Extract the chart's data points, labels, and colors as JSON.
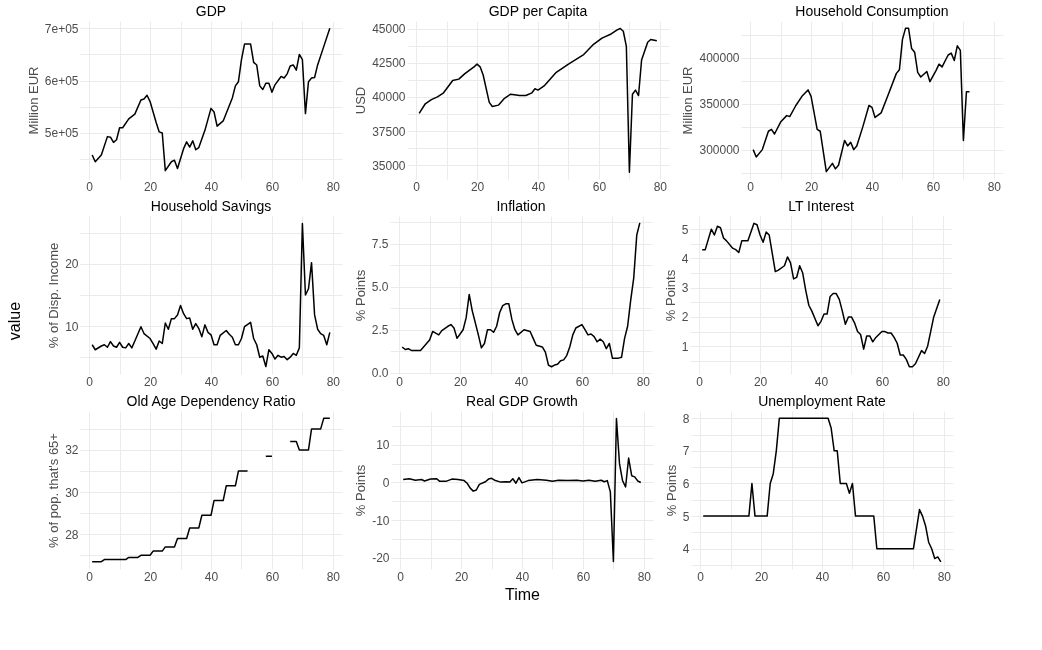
{
  "chart_data": [
    {
      "type": "line",
      "title": "GDP",
      "ylabel": "Million EUR",
      "grid": true,
      "xlim": [
        -3,
        83
      ],
      "xticks": [
        0,
        {
          "value": 10,
          "label": null
        },
        20,
        {
          "value": 30,
          "label": null
        },
        40,
        {
          "value": 50,
          "label": null
        },
        60,
        {
          "value": 70,
          "label": null
        },
        80
      ],
      "ylim": [
        412000,
        714000
      ],
      "yticks": [
        {
          "value": 450000,
          "label": null
        },
        {
          "value": 500000,
          "label": "5e+05"
        },
        {
          "value": 550000,
          "label": null
        },
        {
          "value": 600000,
          "label": "6e+05"
        },
        {
          "value": 650000,
          "label": null
        },
        {
          "value": 700000,
          "label": "7e+05"
        }
      ],
      "series": [
        {
          "color": "#000000",
          "x": [
            1,
            2,
            4,
            6,
            7,
            8,
            9,
            10,
            11,
            13,
            15,
            17,
            18,
            19,
            20,
            22,
            23,
            24,
            25,
            27,
            28,
            29,
            31,
            32,
            33,
            34,
            35,
            36,
            38,
            40,
            41,
            42,
            44,
            47,
            48,
            49,
            50,
            51,
            53,
            54,
            55,
            56,
            57,
            58,
            59,
            60,
            61,
            63,
            64,
            65,
            66,
            67,
            68,
            69,
            70,
            71,
            72,
            73,
            74,
            75,
            77,
            79
          ],
          "values": [
            458000,
            445000,
            458000,
            493000,
            492000,
            482000,
            487000,
            510000,
            510000,
            527000,
            536000,
            563000,
            565000,
            572000,
            560000,
            520000,
            502000,
            500000,
            428000,
            445000,
            448000,
            432000,
            470000,
            483000,
            473000,
            485000,
            468000,
            472000,
            505000,
            547000,
            540000,
            513000,
            523000,
            567000,
            590000,
            598000,
            640000,
            670000,
            670000,
            635000,
            630000,
            590000,
            583000,
            595000,
            595000,
            578000,
            592000,
            608000,
            605000,
            613000,
            628000,
            630000,
            620000,
            650000,
            640000,
            537000,
            598000,
            605000,
            606000,
            630000,
            665000,
            700000
          ]
        }
      ]
    },
    {
      "type": "line",
      "title": "GDP per Capita",
      "ylabel": "USD",
      "grid": true,
      "xlim": [
        -3,
        83
      ],
      "xticks": [
        0,
        {
          "value": 10,
          "label": null
        },
        20,
        {
          "value": 30,
          "label": null
        },
        40,
        {
          "value": 50,
          "label": null
        },
        60,
        {
          "value": 70,
          "label": null
        },
        80
      ],
      "ylim": [
        34000,
        45550
      ],
      "yticks": [
        35000,
        {
          "value": 36250,
          "label": null
        },
        37500,
        {
          "value": 38750,
          "label": null
        },
        40000,
        {
          "value": 41250,
          "label": null
        },
        42500,
        {
          "value": 43750,
          "label": null
        },
        45000
      ],
      "series": [
        {
          "color": "#000000",
          "x": [
            1,
            3,
            5,
            7,
            9,
            12,
            14,
            16,
            19,
            20,
            21,
            22,
            24,
            25,
            27,
            29,
            31,
            34,
            36,
            38,
            39,
            40,
            42,
            46,
            50,
            55,
            58,
            61,
            64,
            66,
            67,
            68,
            69,
            70,
            71,
            72,
            73,
            74,
            76,
            77,
            79
          ],
          "values": [
            38800,
            39500,
            39800,
            40000,
            40300,
            41200,
            41300,
            41700,
            42200,
            42400,
            42200,
            41600,
            39600,
            39300,
            39400,
            39900,
            40200,
            40100,
            40100,
            40300,
            40600,
            40500,
            40800,
            41800,
            42400,
            43100,
            43800,
            44300,
            44600,
            44900,
            45000,
            44800,
            43700,
            34500,
            40200,
            40500,
            40100,
            42700,
            44000,
            44200,
            44100
          ]
        }
      ]
    },
    {
      "type": "line",
      "title": "Household Consumption",
      "ylabel": "Million EUR",
      "grid": true,
      "xlim": [
        -3,
        83
      ],
      "xticks": [
        0,
        {
          "value": 10,
          "label": null
        },
        20,
        {
          "value": 30,
          "label": null
        },
        40,
        {
          "value": 50,
          "label": null
        },
        60,
        {
          "value": 70,
          "label": null
        },
        80
      ],
      "ylim": [
        268000,
        440000
      ],
      "yticks": [
        {
          "value": 275000,
          "label": null
        },
        300000,
        {
          "value": 325000,
          "label": null
        },
        350000,
        {
          "value": 375000,
          "label": null
        },
        400000,
        {
          "value": 425000,
          "label": null
        }
      ],
      "series": [
        {
          "color": "#000000",
          "x": [
            1,
            2,
            4,
            6,
            7,
            8,
            10,
            12,
            13,
            15,
            17,
            19,
            20,
            22,
            23,
            25,
            27,
            28,
            29,
            31,
            32,
            33,
            34,
            35,
            37,
            39,
            40,
            41,
            43,
            45,
            48,
            49,
            50,
            51,
            52,
            53,
            54,
            55,
            56,
            58,
            59,
            61,
            62,
            63,
            65,
            66,
            67,
            68,
            69,
            70,
            71,
            72
          ],
          "values": [
            300000,
            292000,
            300000,
            320000,
            322000,
            317000,
            330000,
            337000,
            336000,
            348000,
            358000,
            365000,
            358000,
            322000,
            320000,
            276000,
            285000,
            279000,
            283000,
            310000,
            304000,
            308000,
            300000,
            304000,
            325000,
            348000,
            346000,
            335000,
            340000,
            357000,
            383000,
            387000,
            420000,
            432000,
            432000,
            410000,
            406000,
            384000,
            379000,
            385000,
            374000,
            386000,
            393000,
            390000,
            403000,
            405000,
            397000,
            413000,
            408000,
            310000,
            363000,
            363000
          ]
        }
      ]
    },
    {
      "type": "line",
      "title": "Household Savings",
      "ylabel": "% of Disp. Income",
      "annotations": [
        "value"
      ],
      "grid": true,
      "xlim": [
        -3,
        83
      ],
      "xticks": [
        0,
        {
          "value": 10,
          "label": null
        },
        20,
        {
          "value": 30,
          "label": null
        },
        40,
        {
          "value": 50,
          "label": null
        },
        60,
        {
          "value": 70,
          "label": null
        },
        80
      ],
      "ylim": [
        2.3,
        27.7
      ],
      "yticks": [
        {
          "value": 5,
          "label": null
        },
        10,
        {
          "value": 15,
          "label": null
        },
        20,
        {
          "value": 25,
          "label": null
        }
      ],
      "series": [
        {
          "color": "#000000",
          "x": [
            1,
            2,
            4,
            5,
            6,
            7,
            8,
            9,
            10,
            11,
            12,
            13,
            14,
            15,
            17,
            18,
            20,
            21,
            22,
            23,
            24,
            25,
            26,
            27,
            28,
            29,
            30,
            31,
            32,
            33,
            34,
            35,
            36,
            37,
            38,
            39,
            40,
            41,
            42,
            43,
            45,
            46,
            47,
            48,
            49,
            50,
            51,
            53,
            54,
            55,
            56,
            57,
            58,
            59,
            60,
            61,
            62,
            63,
            64,
            65,
            66,
            67,
            68,
            69,
            70,
            71,
            72,
            73,
            74,
            75,
            76,
            77,
            78,
            79
          ],
          "values": [
            7,
            6.2,
            6.8,
            7,
            6.6,
            7.5,
            6.8,
            6.6,
            7.4,
            6.6,
            6.5,
            7.2,
            6.5,
            7.6,
            9.9,
            8.8,
            8,
            7.2,
            6.3,
            7.6,
            7.2,
            10.5,
            9.5,
            11.2,
            11.2,
            11.8,
            13.3,
            12,
            11.2,
            11.3,
            9.5,
            10.4,
            9.6,
            8.3,
            10.2,
            9,
            8.6,
            7,
            7,
            8.5,
            9.3,
            8.7,
            8.2,
            7,
            7,
            8,
            9.9,
            10.6,
            8,
            7,
            5,
            5.2,
            3.5,
            6.2,
            5.6,
            4.7,
            5.3,
            5,
            5.1,
            4.6,
            5,
            5.6,
            5.3,
            6.5,
            26.5,
            15,
            16,
            20.2,
            11.8,
            9.5,
            8.8,
            8.5,
            7,
            9
          ]
        }
      ]
    },
    {
      "type": "line",
      "title": "Inflation",
      "ylabel": "% Points",
      "grid": true,
      "xlim": [
        -3,
        83
      ],
      "xticks": [
        0,
        {
          "value": 10,
          "label": null
        },
        20,
        {
          "value": 30,
          "label": null
        },
        40,
        {
          "value": 50,
          "label": null
        },
        60,
        {
          "value": 70,
          "label": null
        },
        80
      ],
      "ylim": [
        -0.07,
        9.1
      ],
      "yticks": [
        {
          "value": 0,
          "label": "0.0"
        },
        {
          "value": 1.25,
          "label": null
        },
        2.5,
        {
          "value": 3.75,
          "label": null
        },
        {
          "value": 5,
          "label": "5.0"
        },
        {
          "value": 6.25,
          "label": null
        },
        7.5,
        {
          "value": 8.75,
          "label": null
        }
      ],
      "series": [
        {
          "color": "#000000",
          "x": [
            1,
            2,
            3,
            4,
            7,
            9,
            10,
            11,
            13,
            14,
            16,
            17,
            18,
            19,
            21,
            22,
            23,
            24,
            26,
            27,
            28,
            29,
            30,
            31,
            32,
            33,
            34,
            35,
            36,
            37,
            38,
            39,
            41,
            43,
            44,
            45,
            47,
            48,
            49,
            50,
            51,
            52,
            53,
            54,
            55,
            56,
            57,
            58,
            60,
            61,
            62,
            63,
            64,
            65,
            66,
            67,
            68,
            69,
            70,
            72,
            73,
            74,
            75,
            76,
            77,
            78,
            79
          ],
          "values": [
            1.5,
            1.35,
            1.4,
            1.3,
            1.3,
            1.7,
            1.9,
            2.4,
            2.2,
            2.45,
            2.7,
            2.8,
            2.6,
            2.0,
            2.5,
            3.2,
            4.55,
            3.6,
            2.2,
            1.45,
            1.7,
            2.5,
            2.5,
            2.35,
            2.7,
            3.5,
            3.9,
            4.0,
            4.0,
            3.1,
            2.5,
            2.2,
            2.5,
            2.4,
            2.0,
            1.6,
            1.5,
            1.2,
            0.45,
            0.35,
            0.45,
            0.5,
            0.7,
            0.75,
            1.0,
            1.5,
            2.2,
            2.6,
            2.8,
            2.5,
            2.2,
            2.25,
            2.1,
            1.8,
            1.95,
            1.8,
            1.4,
            1.7,
            0.85,
            0.85,
            0.9,
            2.0,
            2.7,
            4.2,
            5.5,
            8.0,
            8.7
          ]
        }
      ]
    },
    {
      "type": "line",
      "title": "LT Interest",
      "ylabel": "% Points",
      "grid": true,
      "xlim": [
        -3,
        83
      ],
      "xticks": [
        0,
        {
          "value": 10,
          "label": null
        },
        20,
        {
          "value": 30,
          "label": null
        },
        40,
        {
          "value": 50,
          "label": null
        },
        60,
        {
          "value": 70,
          "label": null
        },
        80
      ],
      "ylim": [
        0.05,
        5.45
      ],
      "yticks": [
        {
          "value": 0.5,
          "label": null
        },
        1,
        {
          "value": 1.5,
          "label": null
        },
        2,
        {
          "value": 2.5,
          "label": null
        },
        3,
        {
          "value": 3.5,
          "label": null
        },
        4,
        {
          "value": 4.5,
          "label": null
        },
        5
      ],
      "series": [
        {
          "color": "#000000",
          "x": [
            1,
            2,
            4,
            5,
            6,
            7,
            8,
            9,
            11,
            12,
            13,
            14,
            16,
            18,
            19,
            20,
            21,
            22,
            23,
            25,
            26,
            28,
            29,
            30,
            31,
            32,
            33,
            34,
            35,
            36,
            37,
            39,
            40,
            41,
            42,
            43,
            44,
            45,
            46,
            47,
            48,
            49,
            50,
            51,
            52,
            53,
            54,
            55,
            56,
            57,
            58,
            60,
            61,
            62,
            63,
            64,
            65,
            66,
            67,
            68,
            69,
            70,
            71,
            73,
            74,
            75,
            76,
            77,
            79
          ],
          "values": [
            4.3,
            4.3,
            5.0,
            4.8,
            5.1,
            5.05,
            4.7,
            4.6,
            4.35,
            4.3,
            4.2,
            4.6,
            4.6,
            5.2,
            5.15,
            4.8,
            4.55,
            4.9,
            4.8,
            3.55,
            3.6,
            3.75,
            4.05,
            3.85,
            3.3,
            3.35,
            3.75,
            3.5,
            2.9,
            2.4,
            2.2,
            1.7,
            1.85,
            2.1,
            2.1,
            2.7,
            2.8,
            2.8,
            2.6,
            2.2,
            1.75,
            2.0,
            2.0,
            1.8,
            1.5,
            1.4,
            0.9,
            1.35,
            1.35,
            1.15,
            1.3,
            1.5,
            1.5,
            1.45,
            1.45,
            1.3,
            1.1,
            0.7,
            0.7,
            0.55,
            0.3,
            0.3,
            0.4,
            0.85,
            0.75,
            1.0,
            1.5,
            2.0,
            2.6
          ]
        }
      ]
    },
    {
      "type": "line",
      "title": "Old Age Dependency Ratio",
      "ylabel": "% of pop. that's 65+",
      "grid": true,
      "xlim": [
        -3,
        83
      ],
      "xticks": [
        0,
        {
          "value": 10,
          "label": null
        },
        20,
        {
          "value": 30,
          "label": null
        },
        40,
        {
          "value": 50,
          "label": null
        },
        60,
        {
          "value": 70,
          "label": null
        },
        80
      ],
      "ylim": [
        26.35,
        33.85
      ],
      "yticks": [
        {
          "value": 27,
          "label": null
        },
        28,
        {
          "value": 29,
          "label": null
        },
        30,
        {
          "value": 31,
          "label": null
        },
        32,
        {
          "value": 33,
          "label": null
        }
      ],
      "series": [
        {
          "color": "#000000",
          "x": [
            1,
            4,
            5,
            12,
            13,
            16,
            17,
            20,
            21,
            24,
            25,
            28,
            29,
            32,
            33,
            36,
            37,
            40,
            41,
            44,
            45,
            48,
            49,
            52,
            55,
            58,
            60,
            63,
            66,
            68,
            69,
            72,
            73,
            76,
            77,
            79
          ],
          "values": [
            26.7,
            26.7,
            26.8,
            26.8,
            26.9,
            26.9,
            27.0,
            27.0,
            27.2,
            27.2,
            27.4,
            27.4,
            27.8,
            27.8,
            28.3,
            28.3,
            28.9,
            28.9,
            29.6,
            29.6,
            30.3,
            30.3,
            31.0,
            31.0,
            null,
            31.7,
            31.7,
            null,
            32.4,
            32.4,
            32.0,
            32.0,
            33.0,
            33.0,
            33.5,
            33.5
          ]
        }
      ]
    },
    {
      "type": "line",
      "title": "Real GDP Growth",
      "ylabel": "% Points",
      "xlabel": "Time",
      "grid": true,
      "xlim": [
        -3,
        83
      ],
      "xticks": [
        0,
        {
          "value": 10,
          "label": null
        },
        20,
        {
          "value": 30,
          "label": null
        },
        40,
        {
          "value": 50,
          "label": null
        },
        60,
        {
          "value": 70,
          "label": null
        },
        80
      ],
      "ylim": [
        -23,
        19
      ],
      "yticks": [
        -20,
        {
          "value": -15,
          "label": null
        },
        -10,
        {
          "value": -5,
          "label": null
        },
        0,
        {
          "value": 5,
          "label": null
        },
        10,
        {
          "value": 15,
          "label": null
        }
      ],
      "series": [
        {
          "color": "#000000",
          "x": [
            1,
            3,
            5,
            7,
            8,
            10,
            12,
            13,
            15,
            17,
            19,
            21,
            22,
            23,
            24,
            25,
            26,
            28,
            29,
            30,
            31,
            33,
            35,
            36,
            37,
            38,
            39,
            40,
            42,
            45,
            48,
            50,
            52,
            55,
            58,
            60,
            62,
            64,
            66,
            67,
            68,
            69,
            70,
            71,
            72,
            73,
            74,
            75,
            76,
            77,
            78,
            79
          ],
          "values": [
            0.8,
            1.0,
            0.6,
            0.8,
            0.4,
            0.9,
            1.0,
            0.3,
            0.3,
            0.9,
            0.8,
            0.5,
            -0.2,
            -1.5,
            -2.3,
            -2.0,
            -0.5,
            0.2,
            0.9,
            1.1,
            0.6,
            0.1,
            0.2,
            0.1,
            1.0,
            -0.2,
            1.3,
            -0.1,
            0.5,
            0.8,
            0.6,
            0.3,
            0.6,
            0.5,
            0.6,
            0.4,
            0.6,
            0.3,
            0.6,
            0.2,
            0.5,
            -2.5,
            -21,
            17,
            5,
            0.5,
            -1.2,
            6.5,
            1.8,
            1.5,
            0.4,
            0
          ]
        }
      ]
    },
    {
      "type": "line",
      "title": "Unemployment Rate",
      "ylabel": "% Points",
      "grid": true,
      "xlim": [
        -3,
        83
      ],
      "xticks": [
        0,
        {
          "value": 10,
          "label": null
        },
        20,
        {
          "value": 30,
          "label": null
        },
        40,
        {
          "value": 50,
          "label": null
        },
        60,
        {
          "value": 70,
          "label": null
        },
        80
      ],
      "ylim": [
        3.38,
        8.22
      ],
      "yticks": [
        {
          "value": 3.5,
          "label": null
        },
        4,
        {
          "value": 4.5,
          "label": null
        },
        5,
        {
          "value": 5.5,
          "label": null
        },
        6,
        {
          "value": 6.5,
          "label": null
        },
        7,
        {
          "value": 7.5,
          "label": null
        },
        8
      ],
      "series": [
        {
          "color": "#000000",
          "x": [
            1,
            16,
            17,
            18,
            22,
            23,
            24,
            25,
            26,
            42,
            43,
            44,
            45,
            46,
            48,
            49,
            50,
            51,
            57,
            58,
            70,
            72,
            73,
            74,
            75,
            76,
            77,
            78,
            79
          ],
          "values": [
            5,
            5,
            6,
            5,
            5,
            6,
            6.3,
            7,
            8,
            8,
            7.7,
            7,
            7,
            6,
            6,
            5.7,
            6,
            5,
            5,
            4,
            4,
            5.2,
            5,
            4.7,
            4.2,
            4,
            3.7,
            3.75,
            3.6
          ]
        }
      ]
    }
  ]
}
